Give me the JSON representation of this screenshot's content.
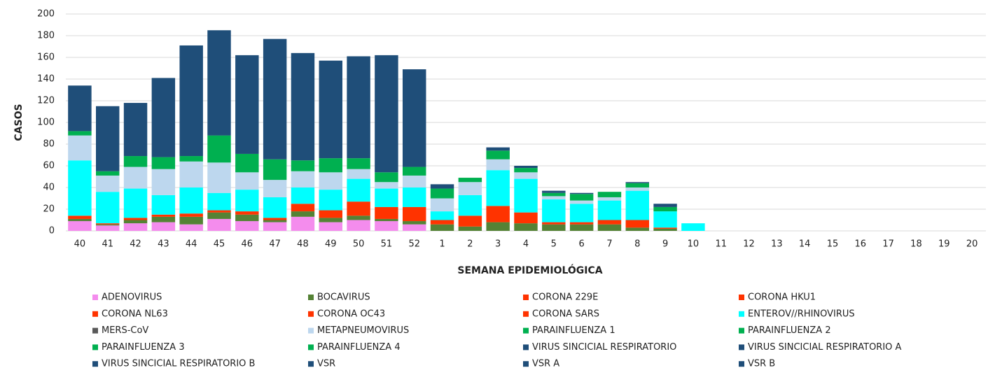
{
  "chart_data": {
    "type": "stacked_bar",
    "x_label": "SEMANA EPIDEMIOLÓGICA",
    "y_label": "CASOS",
    "categories": [
      "40",
      "41",
      "42",
      "43",
      "44",
      "45",
      "46",
      "47",
      "48",
      "49",
      "50",
      "51",
      "52",
      "1",
      "2",
      "3",
      "4",
      "5",
      "6",
      "7",
      "8",
      "9",
      "10",
      "11",
      "12",
      "13",
      "14",
      "15",
      "16",
      "17",
      "18",
      "19",
      "20"
    ],
    "ylim": [
      0,
      200
    ],
    "yticks": [
      0,
      20,
      40,
      60,
      80,
      100,
      120,
      140,
      160,
      180,
      200
    ],
    "grid": true,
    "series": [
      {
        "name": "ADENOVIRUS",
        "color": "#f48ced",
        "values": [
          9,
          5,
          7,
          8,
          6,
          11,
          9,
          8,
          13,
          8,
          10,
          9,
          6,
          0,
          0,
          0,
          0,
          0,
          0,
          0,
          0,
          0,
          0,
          0,
          0,
          0,
          0,
          0,
          0,
          0,
          0,
          0,
          0
        ]
      },
      {
        "name": "BOCAVIRUS",
        "color": "#548235",
        "values": [
          2,
          1,
          3,
          5,
          7,
          6,
          6,
          2,
          5,
          4,
          4,
          2,
          3,
          6,
          4,
          8,
          7,
          6,
          6,
          6,
          3,
          2,
          0,
          0,
          0,
          0,
          0,
          0,
          0,
          0,
          0,
          0,
          0
        ]
      },
      {
        "name": "CORONA 229E",
        "color": "#ff3300",
        "values": [
          0,
          0,
          0,
          0,
          0,
          0,
          0,
          0,
          0,
          0,
          0,
          0,
          0,
          0,
          0,
          0,
          0,
          0,
          0,
          0,
          0,
          0,
          0,
          0,
          0,
          0,
          0,
          0,
          0,
          0,
          0,
          0,
          0
        ]
      },
      {
        "name": "CORONA HKU1",
        "color": "#ff3300",
        "values": [
          0,
          0,
          0,
          0,
          0,
          0,
          0,
          0,
          0,
          0,
          0,
          0,
          0,
          0,
          0,
          0,
          0,
          0,
          0,
          0,
          0,
          0,
          0,
          0,
          0,
          0,
          0,
          0,
          0,
          0,
          0,
          0,
          0
        ]
      },
      {
        "name": "CORONA NL63",
        "color": "#ff3300",
        "values": [
          0,
          0,
          0,
          0,
          0,
          0,
          0,
          0,
          0,
          0,
          0,
          0,
          0,
          0,
          0,
          0,
          0,
          0,
          0,
          0,
          0,
          0,
          0,
          0,
          0,
          0,
          0,
          0,
          0,
          0,
          0,
          0,
          0
        ]
      },
      {
        "name": "CORONA OC43",
        "color": "#ff3300",
        "values": [
          3,
          1,
          2,
          2,
          3,
          2,
          3,
          2,
          7,
          7,
          13,
          11,
          13,
          4,
          10,
          15,
          10,
          2,
          2,
          4,
          7,
          1,
          0,
          0,
          0,
          0,
          0,
          0,
          0,
          0,
          0,
          0,
          0
        ]
      },
      {
        "name": "CORONA SARS",
        "color": "#ff3300",
        "values": [
          0,
          0,
          0,
          0,
          0,
          0,
          0,
          0,
          0,
          0,
          0,
          0,
          0,
          0,
          0,
          0,
          0,
          0,
          0,
          0,
          0,
          0,
          0,
          0,
          0,
          0,
          0,
          0,
          0,
          0,
          0,
          0,
          0
        ]
      },
      {
        "name": "ENTEROV//RHINOVIRUS",
        "color": "#00ffff",
        "values": [
          51,
          29,
          27,
          18,
          24,
          16,
          20,
          19,
          15,
          19,
          21,
          17,
          18,
          8,
          19,
          33,
          31,
          21,
          17,
          18,
          27,
          15,
          7,
          0,
          0,
          0,
          0,
          0,
          0,
          0,
          0,
          0,
          0
        ]
      },
      {
        "name": "MERS-CoV",
        "color": "#595959",
        "values": [
          0,
          0,
          0,
          0,
          0,
          0,
          0,
          0,
          0,
          0,
          0,
          0,
          0,
          0,
          0,
          0,
          0,
          0,
          0,
          0,
          0,
          0,
          0,
          0,
          0,
          0,
          0,
          0,
          0,
          0,
          0,
          0,
          0
        ]
      },
      {
        "name": "METAPNEUMOVIRUS",
        "color": "#bdd7ee",
        "values": [
          23,
          15,
          20,
          24,
          24,
          28,
          16,
          16,
          15,
          16,
          9,
          6,
          11,
          12,
          12,
          10,
          6,
          3,
          3,
          3,
          3,
          0,
          0,
          0,
          0,
          0,
          0,
          0,
          0,
          0,
          0,
          0,
          0
        ]
      },
      {
        "name": "PARAINFLUENZA 1",
        "color": "#00b050",
        "values": [
          0,
          0,
          0,
          0,
          0,
          0,
          0,
          0,
          0,
          0,
          0,
          0,
          0,
          0,
          0,
          0,
          0,
          0,
          0,
          0,
          0,
          0,
          0,
          0,
          0,
          0,
          0,
          0,
          0,
          0,
          0,
          0,
          0
        ]
      },
      {
        "name": "PARAINFLUENZA 2",
        "color": "#00b050",
        "values": [
          0,
          0,
          0,
          0,
          0,
          0,
          0,
          0,
          0,
          0,
          0,
          0,
          0,
          0,
          0,
          0,
          0,
          0,
          0,
          0,
          0,
          0,
          0,
          0,
          0,
          0,
          0,
          0,
          0,
          0,
          0,
          0,
          0
        ]
      },
      {
        "name": "PARAINFLUENZA 3",
        "color": "#00b050",
        "values": [
          4,
          4,
          10,
          11,
          5,
          25,
          17,
          19,
          10,
          13,
          10,
          9,
          8,
          9,
          4,
          8,
          4,
          3,
          6,
          5,
          4,
          4,
          0,
          0,
          0,
          0,
          0,
          0,
          0,
          0,
          0,
          0,
          0
        ]
      },
      {
        "name": "PARAINFLUENZA 4",
        "color": "#00b050",
        "values": [
          0,
          0,
          0,
          0,
          0,
          0,
          0,
          0,
          0,
          0,
          0,
          0,
          0,
          0,
          0,
          0,
          0,
          0,
          0,
          0,
          0,
          0,
          0,
          0,
          0,
          0,
          0,
          0,
          0,
          0,
          0,
          0,
          0
        ]
      },
      {
        "name": "VIRUS SINCICIAL RESPIRATORIO",
        "color": "#1f4e79",
        "values": [
          0,
          0,
          0,
          0,
          0,
          0,
          0,
          0,
          0,
          0,
          0,
          0,
          0,
          0,
          0,
          0,
          0,
          0,
          0,
          0,
          0,
          0,
          0,
          0,
          0,
          0,
          0,
          0,
          0,
          0,
          0,
          0,
          0
        ]
      },
      {
        "name": "VIRUS SINCICIAL RESPIRATORIO A",
        "color": "#1f4e79",
        "values": [
          0,
          0,
          0,
          0,
          0,
          0,
          0,
          0,
          0,
          0,
          0,
          0,
          0,
          0,
          0,
          0,
          0,
          0,
          0,
          0,
          0,
          0,
          0,
          0,
          0,
          0,
          0,
          0,
          0,
          0,
          0,
          0,
          0
        ]
      },
      {
        "name": "VIRUS SINCICIAL RESPIRATORIO B",
        "color": "#1f4e79",
        "values": [
          0,
          0,
          0,
          0,
          0,
          0,
          0,
          0,
          0,
          0,
          0,
          0,
          0,
          0,
          0,
          0,
          0,
          0,
          0,
          0,
          0,
          0,
          0,
          0,
          0,
          0,
          0,
          0,
          0,
          0,
          0,
          0,
          0
        ]
      },
      {
        "name": "VSR",
        "color": "#1f4e79",
        "values": [
          42,
          60,
          49,
          73,
          102,
          97,
          91,
          111,
          99,
          90,
          94,
          108,
          90,
          4,
          0,
          3,
          2,
          2,
          1,
          0,
          1,
          3,
          0,
          0,
          0,
          0,
          0,
          0,
          0,
          0,
          0,
          0,
          0
        ]
      },
      {
        "name": "VSR A",
        "color": "#1f4e79",
        "values": [
          0,
          0,
          0,
          0,
          0,
          0,
          0,
          0,
          0,
          0,
          0,
          0,
          0,
          0,
          0,
          0,
          0,
          0,
          0,
          0,
          0,
          0,
          0,
          0,
          0,
          0,
          0,
          0,
          0,
          0,
          0,
          0,
          0
        ]
      },
      {
        "name": "VSR B",
        "color": "#1f4e79",
        "values": [
          0,
          0,
          0,
          0,
          0,
          0,
          0,
          0,
          0,
          0,
          0,
          0,
          0,
          0,
          0,
          0,
          0,
          0,
          0,
          0,
          0,
          0,
          0,
          0,
          0,
          0,
          0,
          0,
          0,
          0,
          0,
          0,
          0
        ]
      }
    ]
  }
}
